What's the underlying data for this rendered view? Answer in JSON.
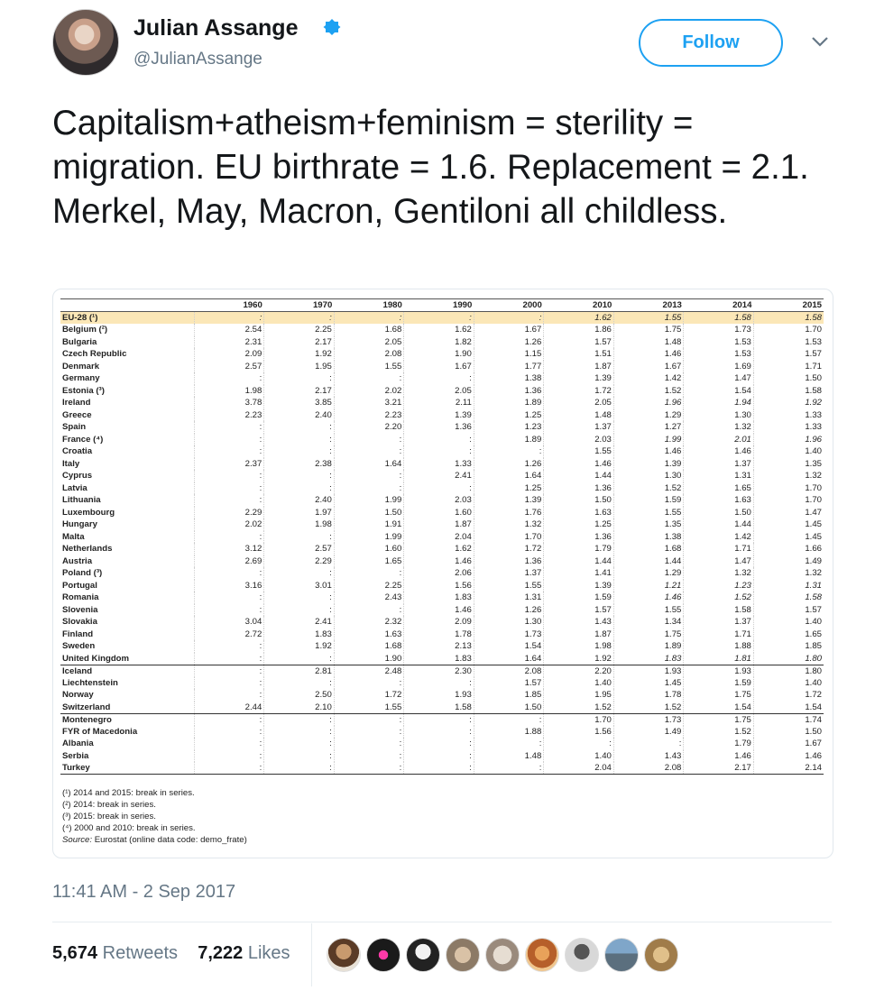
{
  "user": {
    "display_name": "Julian Assange",
    "handle": "@JulianAssange",
    "verified": true,
    "follow_label": "Follow"
  },
  "tweet": {
    "text": "Capitalism+atheism+feminism = sterility = migration. EU birthrate = 1.6. Replacement = 2.1. Merkel, May, Macron, Gentiloni all childless.",
    "timestamp": "11:41 AM - 2 Sep 2017"
  },
  "engagement": {
    "retweets_count": "5,674",
    "retweets_label": "Retweets",
    "likes_count": "7,222",
    "likes_label": "Likes"
  },
  "chart_data": {
    "type": "table",
    "columns": [
      "1960",
      "1970",
      "1980",
      "1990",
      "2000",
      "2010",
      "2013",
      "2014",
      "2015"
    ],
    "rows": [
      {
        "country": "EU-28 (¹)",
        "values": [
          ":",
          ":",
          ":",
          ":",
          ":",
          "1.62",
          "1.55",
          "1.58",
          "1.58"
        ]
      },
      {
        "country": "Belgium (²)",
        "values": [
          "2.54",
          "2.25",
          "1.68",
          "1.62",
          "1.67",
          "1.86",
          "1.75",
          "1.73",
          "1.70"
        ]
      },
      {
        "country": "Bulgaria",
        "values": [
          "2.31",
          "2.17",
          "2.05",
          "1.82",
          "1.26",
          "1.57",
          "1.48",
          "1.53",
          "1.53"
        ]
      },
      {
        "country": "Czech Republic",
        "values": [
          "2.09",
          "1.92",
          "2.08",
          "1.90",
          "1.15",
          "1.51",
          "1.46",
          "1.53",
          "1.57"
        ]
      },
      {
        "country": "Denmark",
        "values": [
          "2.57",
          "1.95",
          "1.55",
          "1.67",
          "1.77",
          "1.87",
          "1.67",
          "1.69",
          "1.71"
        ]
      },
      {
        "country": "Germany",
        "values": [
          ":",
          ":",
          ":",
          ":",
          "1.38",
          "1.39",
          "1.42",
          "1.47",
          "1.50"
        ]
      },
      {
        "country": "Estonia (³)",
        "values": [
          "1.98",
          "2.17",
          "2.02",
          "2.05",
          "1.36",
          "1.72",
          "1.52",
          "1.54",
          "1.58"
        ]
      },
      {
        "country": "Ireland",
        "values": [
          "3.78",
          "3.85",
          "3.21",
          "2.11",
          "1.89",
          "2.05",
          "1.96",
          "1.94",
          "1.92"
        ]
      },
      {
        "country": "Greece",
        "values": [
          "2.23",
          "2.40",
          "2.23",
          "1.39",
          "1.25",
          "1.48",
          "1.29",
          "1.30",
          "1.33"
        ]
      },
      {
        "country": "Spain",
        "values": [
          ":",
          ":",
          "2.20",
          "1.36",
          "1.23",
          "1.37",
          "1.27",
          "1.32",
          "1.33"
        ]
      },
      {
        "country": "France (⁴)",
        "values": [
          ":",
          ":",
          ":",
          ":",
          "1.89",
          "2.03",
          "1.99",
          "2.01",
          "1.96"
        ]
      },
      {
        "country": "Croatia",
        "values": [
          ":",
          ":",
          ":",
          ":",
          ":",
          "1.55",
          "1.46",
          "1.46",
          "1.40"
        ]
      },
      {
        "country": "Italy",
        "values": [
          "2.37",
          "2.38",
          "1.64",
          "1.33",
          "1.26",
          "1.46",
          "1.39",
          "1.37",
          "1.35"
        ]
      },
      {
        "country": "Cyprus",
        "values": [
          ":",
          ":",
          ":",
          "2.41",
          "1.64",
          "1.44",
          "1.30",
          "1.31",
          "1.32"
        ]
      },
      {
        "country": "Latvia",
        "values": [
          ":",
          ":",
          ":",
          ":",
          "1.25",
          "1.36",
          "1.52",
          "1.65",
          "1.70"
        ]
      },
      {
        "country": "Lithuania",
        "values": [
          ":",
          "2.40",
          "1.99",
          "2.03",
          "1.39",
          "1.50",
          "1.59",
          "1.63",
          "1.70"
        ]
      },
      {
        "country": "Luxembourg",
        "values": [
          "2.29",
          "1.97",
          "1.50",
          "1.60",
          "1.76",
          "1.63",
          "1.55",
          "1.50",
          "1.47"
        ]
      },
      {
        "country": "Hungary",
        "values": [
          "2.02",
          "1.98",
          "1.91",
          "1.87",
          "1.32",
          "1.25",
          "1.35",
          "1.44",
          "1.45"
        ]
      },
      {
        "country": "Malta",
        "values": [
          ":",
          ":",
          "1.99",
          "2.04",
          "1.70",
          "1.36",
          "1.38",
          "1.42",
          "1.45"
        ]
      },
      {
        "country": "Netherlands",
        "values": [
          "3.12",
          "2.57",
          "1.60",
          "1.62",
          "1.72",
          "1.79",
          "1.68",
          "1.71",
          "1.66"
        ]
      },
      {
        "country": "Austria",
        "values": [
          "2.69",
          "2.29",
          "1.65",
          "1.46",
          "1.36",
          "1.44",
          "1.44",
          "1.47",
          "1.49"
        ]
      },
      {
        "country": "Poland (³)",
        "values": [
          ":",
          ":",
          ":",
          "2.06",
          "1.37",
          "1.41",
          "1.29",
          "1.32",
          "1.32"
        ]
      },
      {
        "country": "Portugal",
        "values": [
          "3.16",
          "3.01",
          "2.25",
          "1.56",
          "1.55",
          "1.39",
          "1.21",
          "1.23",
          "1.31"
        ]
      },
      {
        "country": "Romania",
        "values": [
          ":",
          ":",
          "2.43",
          "1.83",
          "1.31",
          "1.59",
          "1.46",
          "1.52",
          "1.58"
        ]
      },
      {
        "country": "Slovenia",
        "values": [
          ":",
          ":",
          ":",
          "1.46",
          "1.26",
          "1.57",
          "1.55",
          "1.58",
          "1.57"
        ]
      },
      {
        "country": "Slovakia",
        "values": [
          "3.04",
          "2.41",
          "2.32",
          "2.09",
          "1.30",
          "1.43",
          "1.34",
          "1.37",
          "1.40"
        ]
      },
      {
        "country": "Finland",
        "values": [
          "2.72",
          "1.83",
          "1.63",
          "1.78",
          "1.73",
          "1.87",
          "1.75",
          "1.71",
          "1.65"
        ]
      },
      {
        "country": "Sweden",
        "values": [
          ":",
          "1.92",
          "1.68",
          "2.13",
          "1.54",
          "1.98",
          "1.89",
          "1.88",
          "1.85"
        ]
      },
      {
        "country": "United Kingdom",
        "values": [
          ":",
          ":",
          "1.90",
          "1.83",
          "1.64",
          "1.92",
          "1.83",
          "1.81",
          "1.80"
        ]
      },
      {
        "country": "Iceland",
        "values": [
          ":",
          "2.81",
          "2.48",
          "2.30",
          "2.08",
          "2.20",
          "1.93",
          "1.93",
          "1.80"
        ]
      },
      {
        "country": "Liechtenstein",
        "values": [
          ":",
          ":",
          ":",
          ":",
          "1.57",
          "1.40",
          "1.45",
          "1.59",
          "1.40"
        ]
      },
      {
        "country": "Norway",
        "values": [
          ":",
          "2.50",
          "1.72",
          "1.93",
          "1.85",
          "1.95",
          "1.78",
          "1.75",
          "1.72"
        ]
      },
      {
        "country": "Switzerland",
        "values": [
          "2.44",
          "2.10",
          "1.55",
          "1.58",
          "1.50",
          "1.52",
          "1.52",
          "1.54",
          "1.54"
        ]
      },
      {
        "country": "Montenegro",
        "values": [
          ":",
          ":",
          ":",
          ":",
          ":",
          "1.70",
          "1.73",
          "1.75",
          "1.74"
        ]
      },
      {
        "country": "FYR of Macedonia",
        "values": [
          ":",
          ":",
          ":",
          ":",
          "1.88",
          "1.56",
          "1.49",
          "1.52",
          "1.50"
        ]
      },
      {
        "country": "Albania",
        "values": [
          ":",
          ":",
          ":",
          ":",
          ":",
          ":",
          ":",
          "1.79",
          "1.67"
        ]
      },
      {
        "country": "Serbia",
        "values": [
          ":",
          ":",
          ":",
          ":",
          "1.48",
          "1.40",
          "1.43",
          "1.46",
          "1.46"
        ]
      },
      {
        "country": "Turkey",
        "values": [
          ":",
          ":",
          ":",
          ":",
          ":",
          "2.04",
          "2.08",
          "2.17",
          "2.14"
        ]
      }
    ],
    "footnotes": [
      "(¹) 2014 and 2015: break in series.",
      "(²) 2014: break in series.",
      "(³) 2015: break in series.",
      "(⁴) 2000 and 2010: break in series."
    ],
    "source_label": "Source:",
    "source_text": "Eurostat (online data code: demo_frate)"
  },
  "colors": {
    "accent": "#1da1f2",
    "highlight_row": "#fbe7b7",
    "muted_text": "#657786"
  },
  "icons": {
    "verified": "verified-badge-icon",
    "menu": "chevron-down-icon"
  }
}
